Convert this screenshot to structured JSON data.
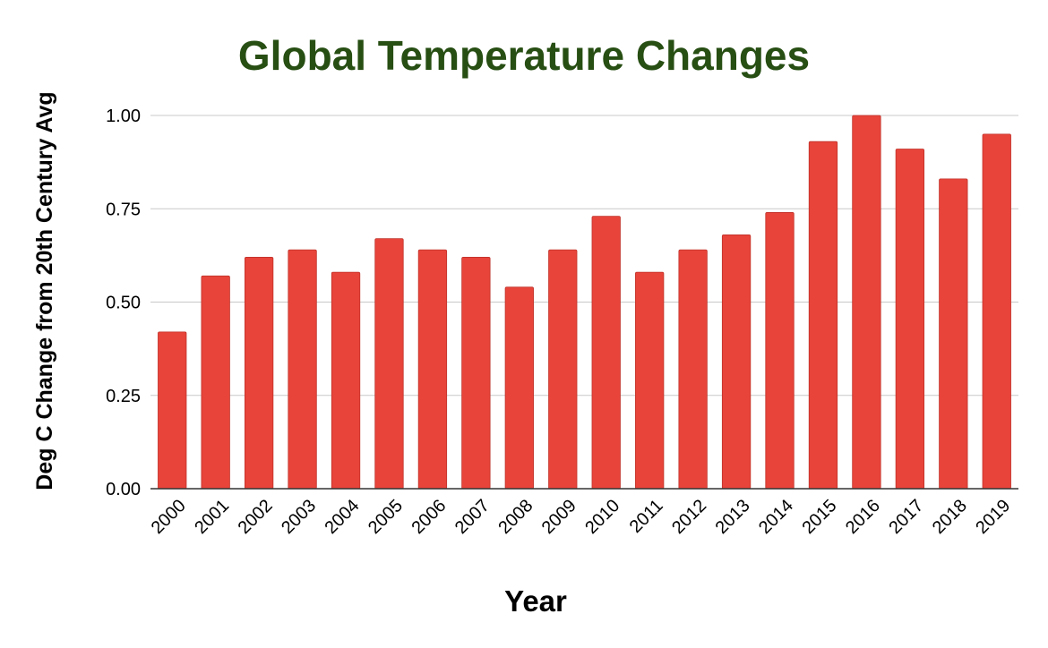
{
  "chart_data": {
    "type": "bar",
    "title": "Global Temperature Changes",
    "xlabel": "Year",
    "ylabel": "Deg C Change from 20th Century Avg",
    "categories": [
      "2000",
      "2001",
      "2002",
      "2003",
      "2004",
      "2005",
      "2006",
      "2007",
      "2008",
      "2009",
      "2010",
      "2011",
      "2012",
      "2013",
      "2014",
      "2015",
      "2016",
      "2017",
      "2018",
      "2019"
    ],
    "values": [
      0.42,
      0.57,
      0.62,
      0.64,
      0.58,
      0.67,
      0.64,
      0.62,
      0.54,
      0.64,
      0.73,
      0.58,
      0.64,
      0.68,
      0.74,
      0.93,
      1.0,
      0.91,
      0.83,
      0.95
    ],
    "ylim": [
      0,
      1.0
    ],
    "yticks": [
      0,
      0.25,
      0.5,
      0.75,
      1.0
    ],
    "ytick_labels": [
      "0.00",
      "0.25",
      "0.50",
      "0.75",
      "1.00"
    ],
    "grid": true,
    "legend": "none"
  },
  "colors": {
    "bar": "#e8443a",
    "title": "#274e13",
    "grid": "#c8c8c8",
    "axis": "#333333",
    "text": "#000000"
  }
}
